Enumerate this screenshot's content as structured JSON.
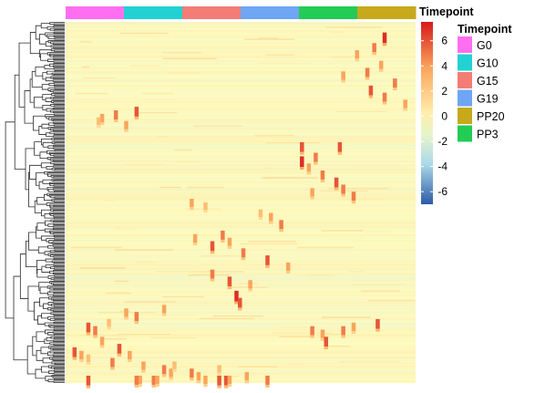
{
  "chart_data": {
    "type": "heatmap",
    "title": "",
    "xlabel": "",
    "ylabel": "",
    "row_count": 300,
    "clustering": {
      "rows": true,
      "columns": false
    },
    "column_annotation": {
      "name": "Timepoint",
      "groups": [
        {
          "name": "G0",
          "color": "#FF6EF0",
          "span": 0.1667
        },
        {
          "name": "G10",
          "color": "#22D2D2",
          "span": 0.1667
        },
        {
          "name": "G15",
          "color": "#F47C76",
          "span": 0.1667
        },
        {
          "name": "G19",
          "color": "#6EA6F3",
          "span": 0.1667
        },
        {
          "name": "PP3",
          "color": "#22CC55",
          "span": 0.1666
        },
        {
          "name": "PP20",
          "color": "#C7A91B",
          "span": 0.1666
        }
      ]
    },
    "value_legend": {
      "title": "Timepoint",
      "range": [
        -7,
        7.5
      ],
      "ticks": [
        6,
        4,
        2,
        0,
        -2,
        -4,
        -6
      ],
      "colors": {
        "low": "#2C5BA5",
        "mid": "#FFFFBF",
        "high": "#D7191C"
      },
      "baseline_color": "#FCF6C0"
    },
    "category_legend": {
      "title": "Timepoint",
      "entries": [
        {
          "name": "G0",
          "color": "#FF6EF0"
        },
        {
          "name": "G10",
          "color": "#22D2D2"
        },
        {
          "name": "G15",
          "color": "#F47C76"
        },
        {
          "name": "G19",
          "color": "#6EA6F3"
        },
        {
          "name": "PP20",
          "color": "#C7A91B"
        },
        {
          "name": "PP3",
          "color": "#22CC55"
        }
      ]
    },
    "hotspots": [
      {
        "row": 0.03,
        "col": 0.92,
        "value": 7
      },
      {
        "row": 0.06,
        "col": 0.89,
        "value": 5
      },
      {
        "row": 0.08,
        "col": 0.84,
        "value": 4
      },
      {
        "row": 0.11,
        "col": 0.91,
        "value": 4
      },
      {
        "row": 0.13,
        "col": 0.87,
        "value": 5
      },
      {
        "row": 0.16,
        "col": 0.95,
        "value": 5
      },
      {
        "row": 0.18,
        "col": 0.88,
        "value": 6
      },
      {
        "row": 0.2,
        "col": 0.92,
        "value": 5
      },
      {
        "row": 0.22,
        "col": 0.98,
        "value": 4
      },
      {
        "row": 0.14,
        "col": 0.8,
        "value": 4
      },
      {
        "row": 0.26,
        "col": 0.1,
        "value": 4
      },
      {
        "row": 0.25,
        "col": 0.14,
        "value": 5
      },
      {
        "row": 0.24,
        "col": 0.2,
        "value": 6
      },
      {
        "row": 0.28,
        "col": 0.17,
        "value": 4
      },
      {
        "row": 0.27,
        "col": 0.09,
        "value": 3
      },
      {
        "row": 0.34,
        "col": 0.68,
        "value": 6
      },
      {
        "row": 0.37,
        "col": 0.72,
        "value": 5
      },
      {
        "row": 0.34,
        "col": 0.79,
        "value": 6
      },
      {
        "row": 0.38,
        "col": 0.68,
        "value": 7
      },
      {
        "row": 0.42,
        "col": 0.74,
        "value": 5
      },
      {
        "row": 0.44,
        "col": 0.78,
        "value": 6
      },
      {
        "row": 0.46,
        "col": 0.8,
        "value": 5
      },
      {
        "row": 0.47,
        "col": 0.71,
        "value": 4
      },
      {
        "row": 0.48,
        "col": 0.83,
        "value": 5
      },
      {
        "row": 0.4,
        "col": 0.7,
        "value": 4
      },
      {
        "row": 0.5,
        "col": 0.36,
        "value": 4
      },
      {
        "row": 0.51,
        "col": 0.4,
        "value": 3
      },
      {
        "row": 0.54,
        "col": 0.59,
        "value": 4
      },
      {
        "row": 0.56,
        "col": 0.62,
        "value": 5
      },
      {
        "row": 0.53,
        "col": 0.56,
        "value": 3
      },
      {
        "row": 0.6,
        "col": 0.37,
        "value": 4
      },
      {
        "row": 0.62,
        "col": 0.42,
        "value": 6
      },
      {
        "row": 0.59,
        "col": 0.45,
        "value": 5
      },
      {
        "row": 0.61,
        "col": 0.47,
        "value": 4
      },
      {
        "row": 0.64,
        "col": 0.51,
        "value": 5
      },
      {
        "row": 0.66,
        "col": 0.58,
        "value": 6
      },
      {
        "row": 0.68,
        "col": 0.64,
        "value": 4
      },
      {
        "row": 0.7,
        "col": 0.42,
        "value": 5
      },
      {
        "row": 0.72,
        "col": 0.47,
        "value": 6
      },
      {
        "row": 0.76,
        "col": 0.49,
        "value": 7
      },
      {
        "row": 0.78,
        "col": 0.5,
        "value": 6
      },
      {
        "row": 0.73,
        "col": 0.53,
        "value": 4
      },
      {
        "row": 0.81,
        "col": 0.17,
        "value": 4
      },
      {
        "row": 0.82,
        "col": 0.2,
        "value": 5
      },
      {
        "row": 0.84,
        "col": 0.12,
        "value": 3
      },
      {
        "row": 0.85,
        "col": 0.06,
        "value": 6
      },
      {
        "row": 0.86,
        "col": 0.08,
        "value": 5
      },
      {
        "row": 0.89,
        "col": 0.1,
        "value": 4
      },
      {
        "row": 0.91,
        "col": 0.15,
        "value": 6
      },
      {
        "row": 0.93,
        "col": 0.18,
        "value": 4
      },
      {
        "row": 0.94,
        "col": 0.06,
        "value": 3
      },
      {
        "row": 0.8,
        "col": 0.28,
        "value": 4
      },
      {
        "row": 0.86,
        "col": 0.71,
        "value": 5
      },
      {
        "row": 0.87,
        "col": 0.74,
        "value": 4
      },
      {
        "row": 0.86,
        "col": 0.8,
        "value": 5
      },
      {
        "row": 0.89,
        "col": 0.75,
        "value": 6
      },
      {
        "row": 0.85,
        "col": 0.83,
        "value": 4
      },
      {
        "row": 0.84,
        "col": 0.9,
        "value": 6
      },
      {
        "row": 0.92,
        "col": 0.02,
        "value": 6
      },
      {
        "row": 0.93,
        "col": 0.04,
        "value": 4
      },
      {
        "row": 0.95,
        "col": 0.13,
        "value": 5
      },
      {
        "row": 0.96,
        "col": 0.22,
        "value": 4
      },
      {
        "row": 0.97,
        "col": 0.28,
        "value": 5
      },
      {
        "row": 0.98,
        "col": 0.3,
        "value": 4
      },
      {
        "row": 0.96,
        "col": 0.31,
        "value": 3
      },
      {
        "row": 0.98,
        "col": 0.36,
        "value": 5
      },
      {
        "row": 0.99,
        "col": 0.38,
        "value": 4
      },
      {
        "row": 0.97,
        "col": 0.44,
        "value": 3
      },
      {
        "row": 1.0,
        "col": 0.46,
        "value": 6
      },
      {
        "row": 0.99,
        "col": 0.52,
        "value": 4
      },
      {
        "row": 1.02,
        "col": 0.58,
        "value": 5
      },
      {
        "row": 1.04,
        "col": 0.44,
        "value": 6
      },
      {
        "row": 1.05,
        "col": 0.4,
        "value": 4
      },
      {
        "row": 1.07,
        "col": 0.47,
        "value": 4
      },
      {
        "row": 1.08,
        "col": 0.06,
        "value": 6
      },
      {
        "row": 1.08,
        "col": 0.25,
        "value": 5
      },
      {
        "row": 1.02,
        "col": 0.21,
        "value": 4
      },
      {
        "row": 1.03,
        "col": 0.2,
        "value": 5
      },
      {
        "row": 1.09,
        "col": 0.26,
        "value": 4
      }
    ]
  }
}
